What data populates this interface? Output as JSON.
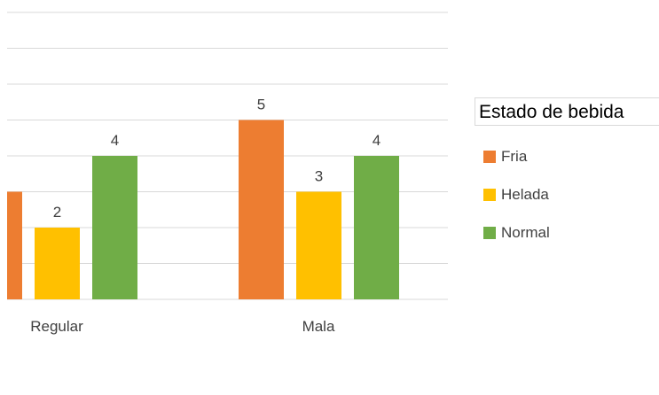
{
  "chart_data": {
    "type": "bar",
    "categories": [
      "Regular",
      "Mala"
    ],
    "series": [
      {
        "name": "Fria",
        "color": "#ED7D31",
        "values": [
          3,
          5
        ]
      },
      {
        "name": "Helada",
        "color": "#FFC000",
        "values": [
          2,
          3
        ]
      },
      {
        "name": "Normal",
        "color": "#70AD47",
        "values": [
          4,
          4
        ]
      }
    ],
    "data_labels": {
      "Regular": [
        "",
        "2",
        "4"
      ],
      "Mala": [
        "5",
        "3",
        "4"
      ]
    },
    "ylim": [
      0,
      8
    ],
    "grid": true,
    "legend_title": "Estado de bebida",
    "legend_position": "right"
  }
}
